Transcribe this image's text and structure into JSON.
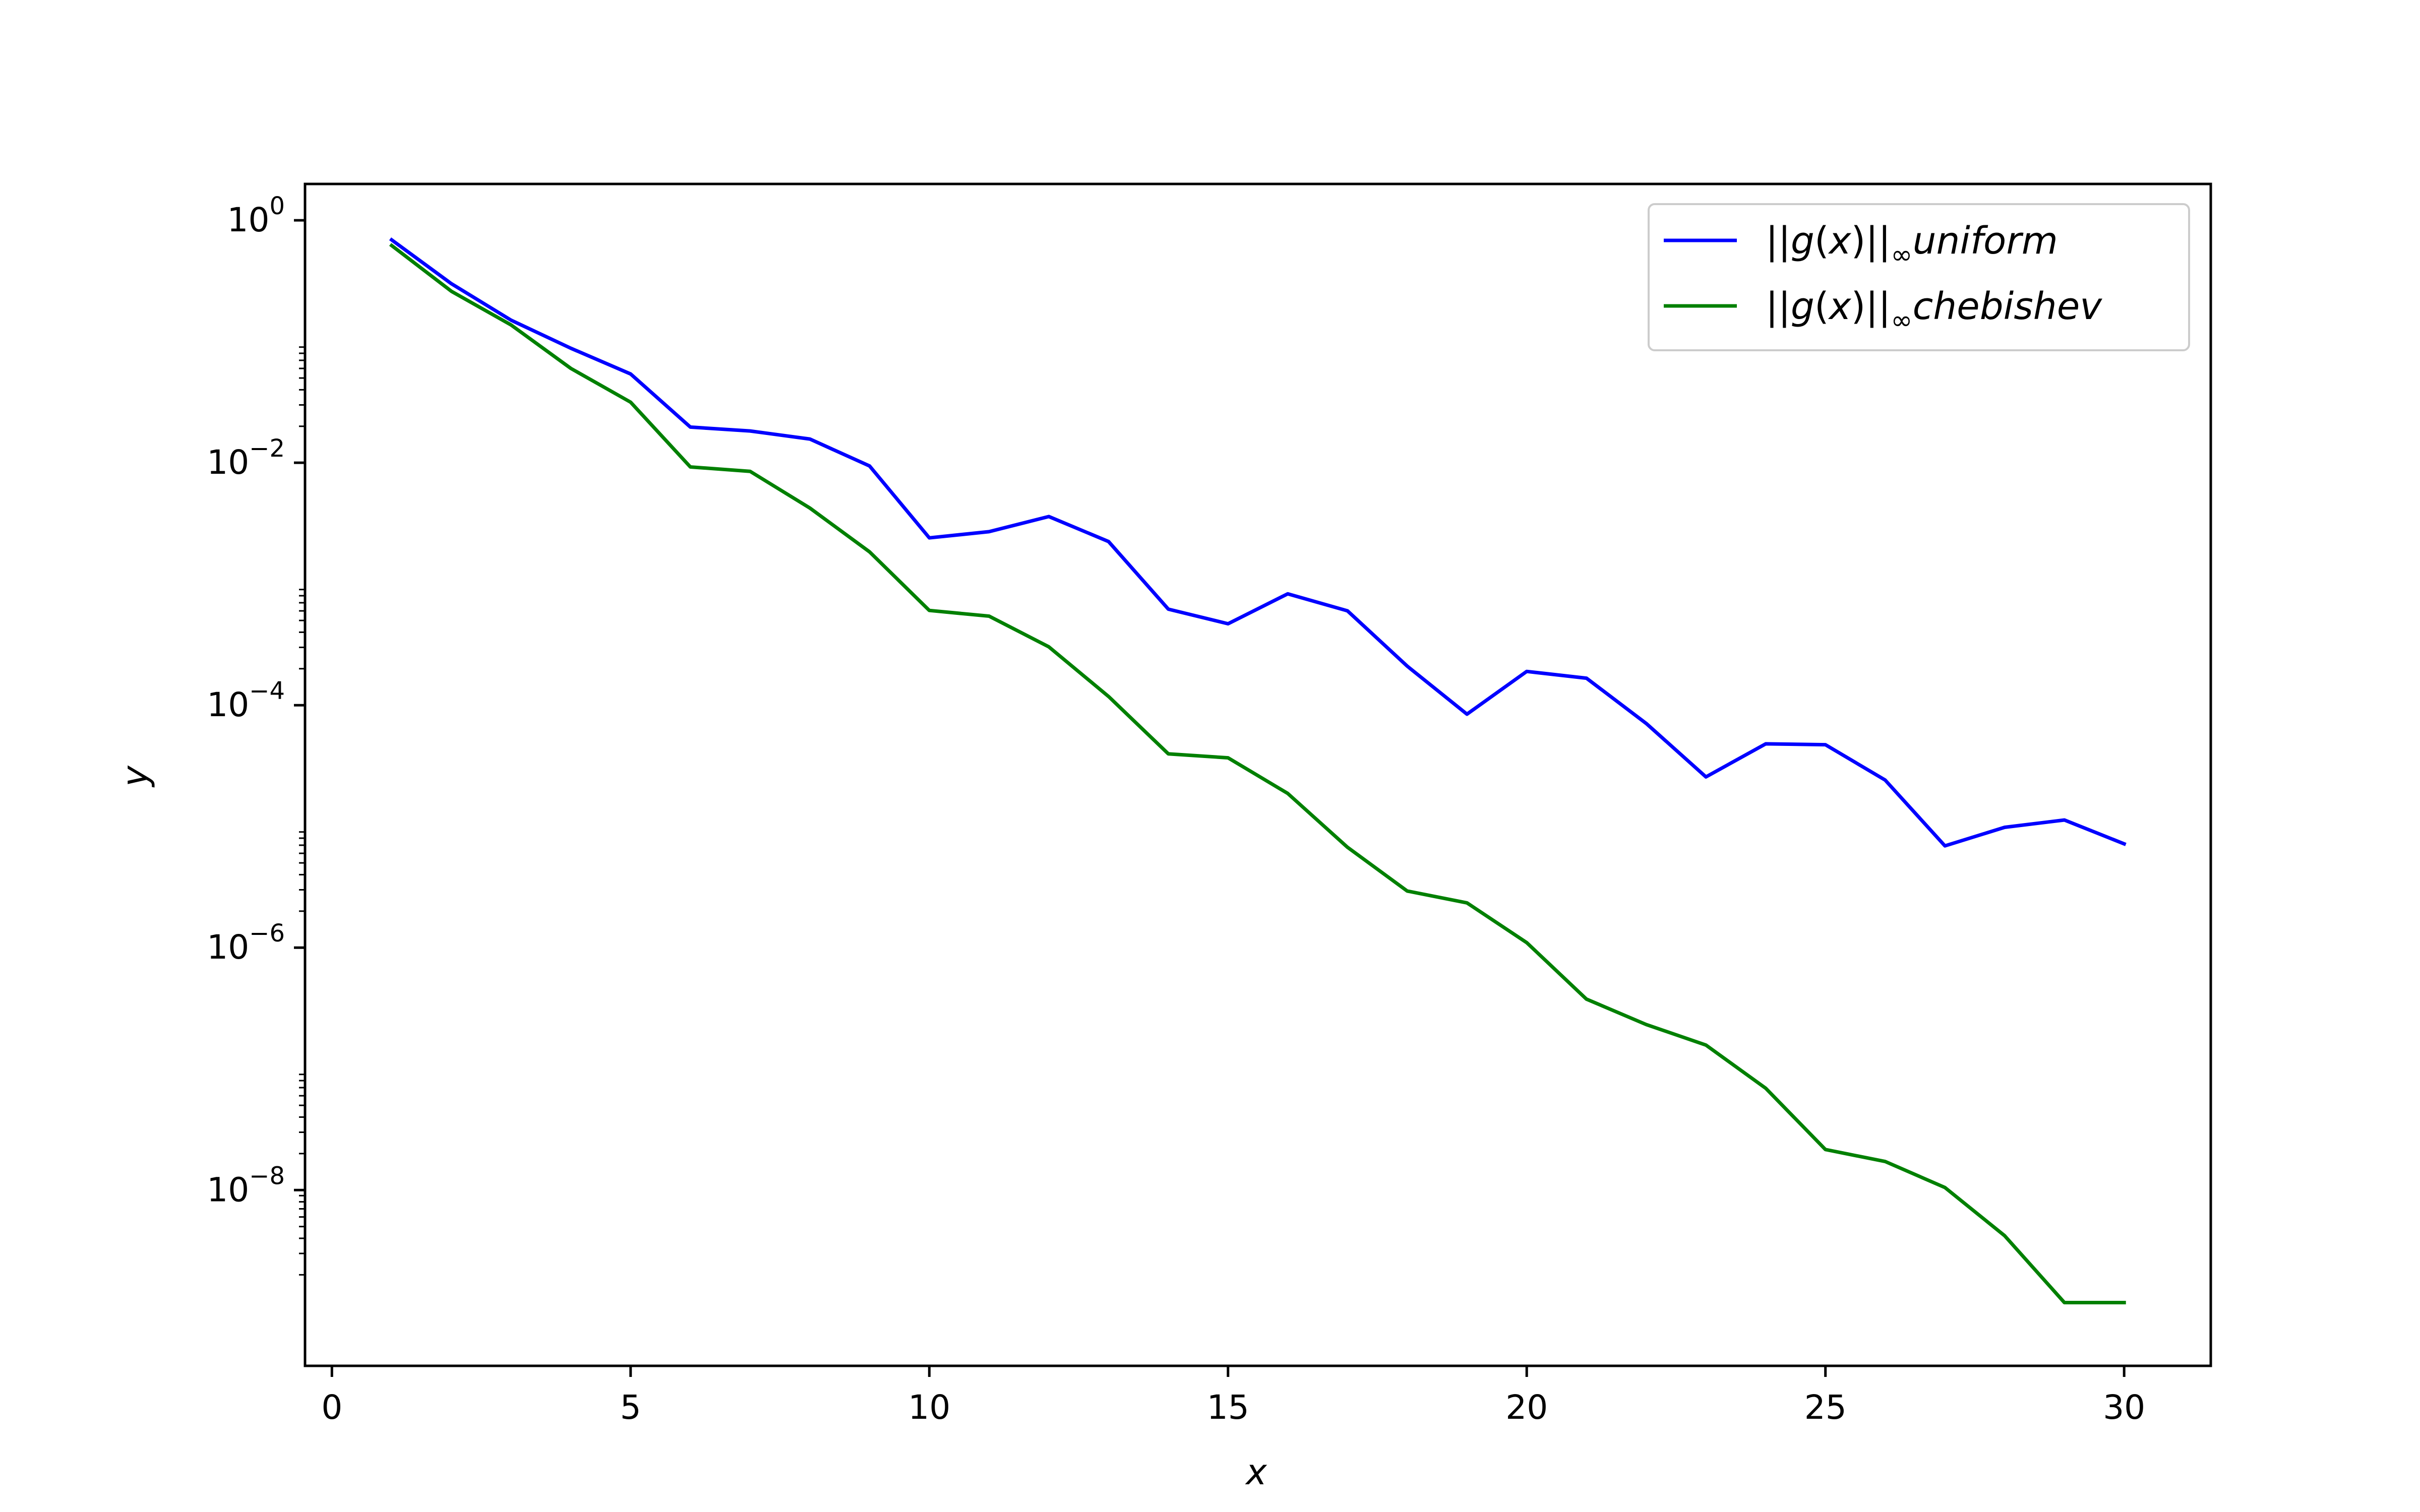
{
  "chart_data": {
    "type": "line",
    "title": "",
    "xlabel": "x",
    "ylabel": "y",
    "xlim": [
      -0.45,
      31.45
    ],
    "ylim_log10": [
      -9.45,
      0.3
    ],
    "y_scale": "log",
    "grid": false,
    "legend_position": "top-right",
    "x_ticks": [
      0,
      5,
      10,
      15,
      20,
      25,
      30
    ],
    "x_tick_labels": [
      "0",
      "5",
      "10",
      "15",
      "20",
      "25",
      "30"
    ],
    "y_ticks_log10": [
      0,
      -2,
      -4,
      -6,
      -8
    ],
    "y_tick_labels": [
      {
        "base": "10",
        "exp": "0"
      },
      {
        "base": "10",
        "exp": "−2"
      },
      {
        "base": "10",
        "exp": "−4"
      },
      {
        "base": "10",
        "exp": "−6"
      },
      {
        "base": "10",
        "exp": "−8"
      }
    ],
    "x": [
      1,
      2,
      3,
      4,
      5,
      6,
      7,
      8,
      9,
      10,
      11,
      12,
      13,
      14,
      15,
      16,
      17,
      18,
      19,
      20,
      21,
      22,
      23,
      24,
      25,
      26,
      27,
      28,
      29,
      30
    ],
    "series": [
      {
        "name": "||g(x)||∞uniform",
        "legend": {
          "norm": "||g(x)||",
          "sub": "∞",
          "label": "uniform"
        },
        "color": "#0000ff",
        "values": [
          0.69,
          0.3,
          0.15,
          0.088,
          0.054,
          0.0197,
          0.0183,
          0.0157,
          0.0094,
          0.0024,
          0.0027,
          0.0036,
          0.00224,
          0.00062,
          0.00047,
          0.00083,
          0.0006,
          0.00021,
          8.43e-05,
          0.00019,
          0.000167,
          7.07e-05,
          2.56e-05,
          4.8e-05,
          4.72e-05,
          2.41e-05,
          6.91e-06,
          9.828e-06,
          1.13e-05,
          7.18e-06
        ]
      },
      {
        "name": "||g(x)||∞chebishev",
        "legend": {
          "norm": "||g(x)||",
          "sub": "∞",
          "label": "chebishev"
        },
        "color": "#008000",
        "values": [
          0.62,
          0.26,
          0.137,
          0.06,
          0.0316,
          0.00923,
          0.0085,
          0.00423,
          0.00184,
          0.000605,
          0.000543,
          0.000303,
          0.000118,
          3.97e-05,
          3.68e-05,
          1.87e-05,
          6.73e-06,
          2.93e-06,
          2.34e-06,
          1.1e-06,
          3.76e-07,
          2.32e-07,
          1.57e-07,
          6.92e-08,
          2.16e-08,
          1.72e-08,
          1.05e-08,
          4.2e-09,
          1.18e-09,
          1.18e-09
        ]
      }
    ]
  }
}
